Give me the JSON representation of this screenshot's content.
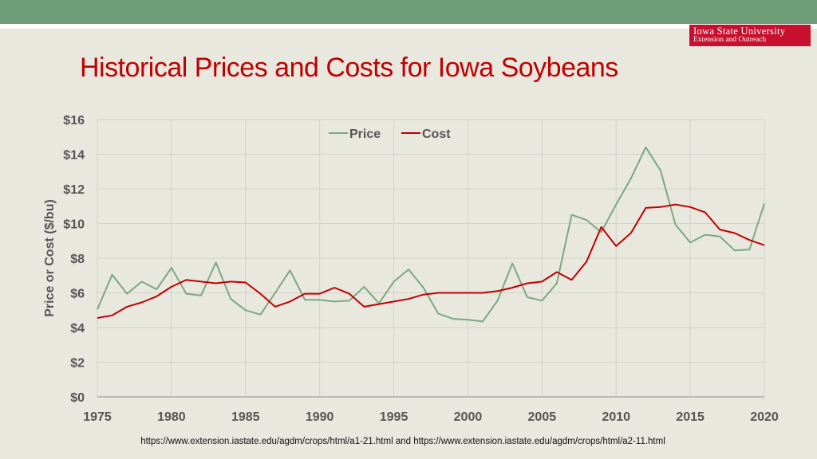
{
  "header": {
    "logo_line1": "Iowa State University",
    "logo_line2": "Extension and Outreach",
    "accent_color": "#6e9d78",
    "brand_color": "#c8102e"
  },
  "title": "Historical Prices and Costs for Iowa Soybeans",
  "source": "https://www.extension.iastate.edu/agdm/crops/html/a1-21.html and https://www.extension.iastate.edu/agdm/crops/html/a2-11.html",
  "chart_data": {
    "type": "line",
    "title": "",
    "xlabel": "",
    "ylabel": "Price or Cost ($/bu)",
    "xlim": [
      1975,
      2020
    ],
    "ylim": [
      0,
      16
    ],
    "x_ticks": [
      1975,
      1980,
      1985,
      1990,
      1995,
      2000,
      2005,
      2010,
      2015,
      2020
    ],
    "x_tick_labels": [
      "1975",
      "1980",
      "1985",
      "1990",
      "1995",
      "2000",
      "2005",
      "2010",
      "2015",
      "2020"
    ],
    "y_ticks": [
      0,
      2,
      4,
      6,
      8,
      10,
      12,
      14,
      16
    ],
    "y_tick_labels": [
      "$0",
      "$2",
      "$4",
      "$6",
      "$8",
      "$10",
      "$12",
      "$14",
      "$16"
    ],
    "legend_position": "top-center",
    "grid": true,
    "x": [
      1975,
      1976,
      1977,
      1978,
      1979,
      1980,
      1981,
      1982,
      1983,
      1984,
      1985,
      1986,
      1987,
      1988,
      1989,
      1990,
      1991,
      1992,
      1993,
      1994,
      1995,
      1996,
      1997,
      1998,
      1999,
      2000,
      2001,
      2002,
      2003,
      2004,
      2005,
      2006,
      2007,
      2008,
      2009,
      2010,
      2011,
      2012,
      2013,
      2014,
      2015,
      2016,
      2017,
      2018,
      2019,
      2020
    ],
    "series": [
      {
        "name": "Price",
        "color": "#7aa883",
        "values": [
          5.05,
          7.05,
          5.95,
          6.65,
          6.2,
          7.45,
          5.95,
          5.85,
          7.75,
          5.65,
          5.0,
          4.75,
          6.0,
          7.3,
          5.6,
          5.6,
          5.5,
          5.55,
          6.35,
          5.4,
          6.65,
          7.35,
          6.3,
          4.8,
          4.5,
          4.45,
          4.35,
          5.55,
          7.7,
          5.75,
          5.55,
          6.55,
          10.5,
          10.2,
          9.5,
          11.1,
          12.6,
          14.4,
          13.05,
          9.95,
          8.9,
          9.35,
          9.25,
          8.45,
          8.5,
          11.15
        ]
      },
      {
        "name": "Cost",
        "color": "#c00000",
        "values": [
          4.55,
          4.7,
          5.2,
          5.45,
          5.8,
          6.35,
          6.75,
          6.65,
          6.55,
          6.65,
          6.6,
          5.95,
          5.2,
          5.5,
          5.95,
          5.95,
          6.3,
          5.95,
          5.2,
          5.35,
          5.5,
          5.65,
          5.9,
          6.0,
          6.0,
          6.0,
          6.0,
          6.1,
          6.3,
          6.55,
          6.65,
          7.2,
          6.75,
          7.8,
          9.8,
          8.7,
          9.45,
          10.9,
          10.95,
          11.1,
          10.95,
          10.65,
          9.65,
          9.45,
          9.05,
          8.75
        ]
      }
    ]
  }
}
